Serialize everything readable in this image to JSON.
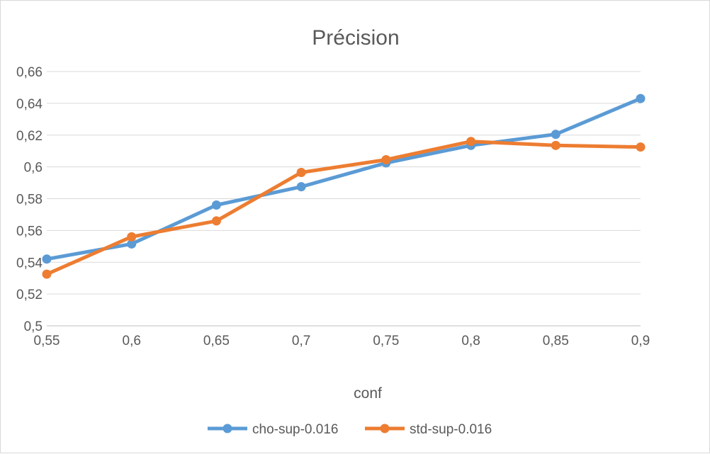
{
  "chart_data": {
    "type": "line",
    "title": "Précision",
    "xlabel": "conf",
    "ylabel": "",
    "x": [
      0.55,
      0.6,
      0.65,
      0.7,
      0.75,
      0.8,
      0.85,
      0.9
    ],
    "x_tick_labels": [
      "0,55",
      "0,6",
      "0,65",
      "0,7",
      "0,75",
      "0,8",
      "0,85",
      "0,9"
    ],
    "ylim": [
      0.5,
      0.66
    ],
    "y_ticks": [
      0.5,
      0.52,
      0.54,
      0.56,
      0.58,
      0.6,
      0.62,
      0.64,
      0.66
    ],
    "y_tick_labels": [
      "0,5",
      "0,52",
      "0,54",
      "0,56",
      "0,58",
      "0,6",
      "0,62",
      "0,64",
      "0,66"
    ],
    "grid": true,
    "legend_position": "bottom",
    "series": [
      {
        "name": "cho-sup-0.016",
        "color": "#5b9bd5",
        "values": [
          0.542,
          0.5515,
          0.576,
          0.5875,
          0.6025,
          0.6135,
          0.6205,
          0.643
        ]
      },
      {
        "name": "std-sup-0.016",
        "color": "#ed7d31",
        "values": [
          0.5325,
          0.556,
          0.566,
          0.5965,
          0.6045,
          0.616,
          0.6135,
          0.6125
        ]
      }
    ]
  }
}
